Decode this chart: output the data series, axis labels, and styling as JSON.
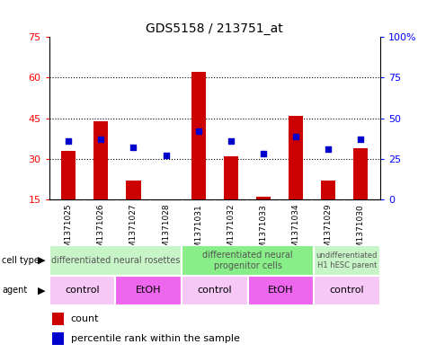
{
  "title": "GDS5158 / 213751_at",
  "samples": [
    "GSM1371025",
    "GSM1371026",
    "GSM1371027",
    "GSM1371028",
    "GSM1371031",
    "GSM1371032",
    "GSM1371033",
    "GSM1371034",
    "GSM1371029",
    "GSM1371030"
  ],
  "counts": [
    33,
    44,
    22,
    15,
    62,
    31,
    16,
    46,
    22,
    34
  ],
  "percentiles": [
    36,
    37,
    32,
    27,
    42,
    36,
    28,
    39,
    31,
    37
  ],
  "left_ylim": [
    15,
    75
  ],
  "left_yticks": [
    15,
    30,
    45,
    60,
    75
  ],
  "right_ylim": [
    0,
    100
  ],
  "right_yticks": [
    0,
    25,
    50,
    75,
    100
  ],
  "right_yticklabels": [
    "0",
    "25",
    "50",
    "75",
    "100%"
  ],
  "bar_color": "#cc0000",
  "dot_color": "#0000cc",
  "dotgrid_lines": [
    30,
    45,
    60
  ],
  "cell_types": [
    {
      "label": "differentiated neural rosettes",
      "start": 0,
      "end": 4,
      "color": "#c8f5c8"
    },
    {
      "label": "differentiated neural\nprogenitor cells",
      "start": 4,
      "end": 8,
      "color": "#88ee88"
    },
    {
      "label": "undifferentiated\nH1 hESC parent",
      "start": 8,
      "end": 10,
      "color": "#c8f5c8"
    }
  ],
  "agents": [
    {
      "label": "control",
      "start": 0,
      "end": 2,
      "color": "#f5c8f5"
    },
    {
      "label": "EtOH",
      "start": 2,
      "end": 4,
      "color": "#ee66ee"
    },
    {
      "label": "control",
      "start": 4,
      "end": 6,
      "color": "#f5c8f5"
    },
    {
      "label": "EtOH",
      "start": 6,
      "end": 8,
      "color": "#ee66ee"
    },
    {
      "label": "control",
      "start": 8,
      "end": 10,
      "color": "#f5c8f5"
    }
  ],
  "legend_count_color": "#cc0000",
  "legend_dot_color": "#0000cc",
  "bg_color": "#ffffff",
  "plot_bg": "#ffffff",
  "xticklabel_bg": "#cccccc"
}
